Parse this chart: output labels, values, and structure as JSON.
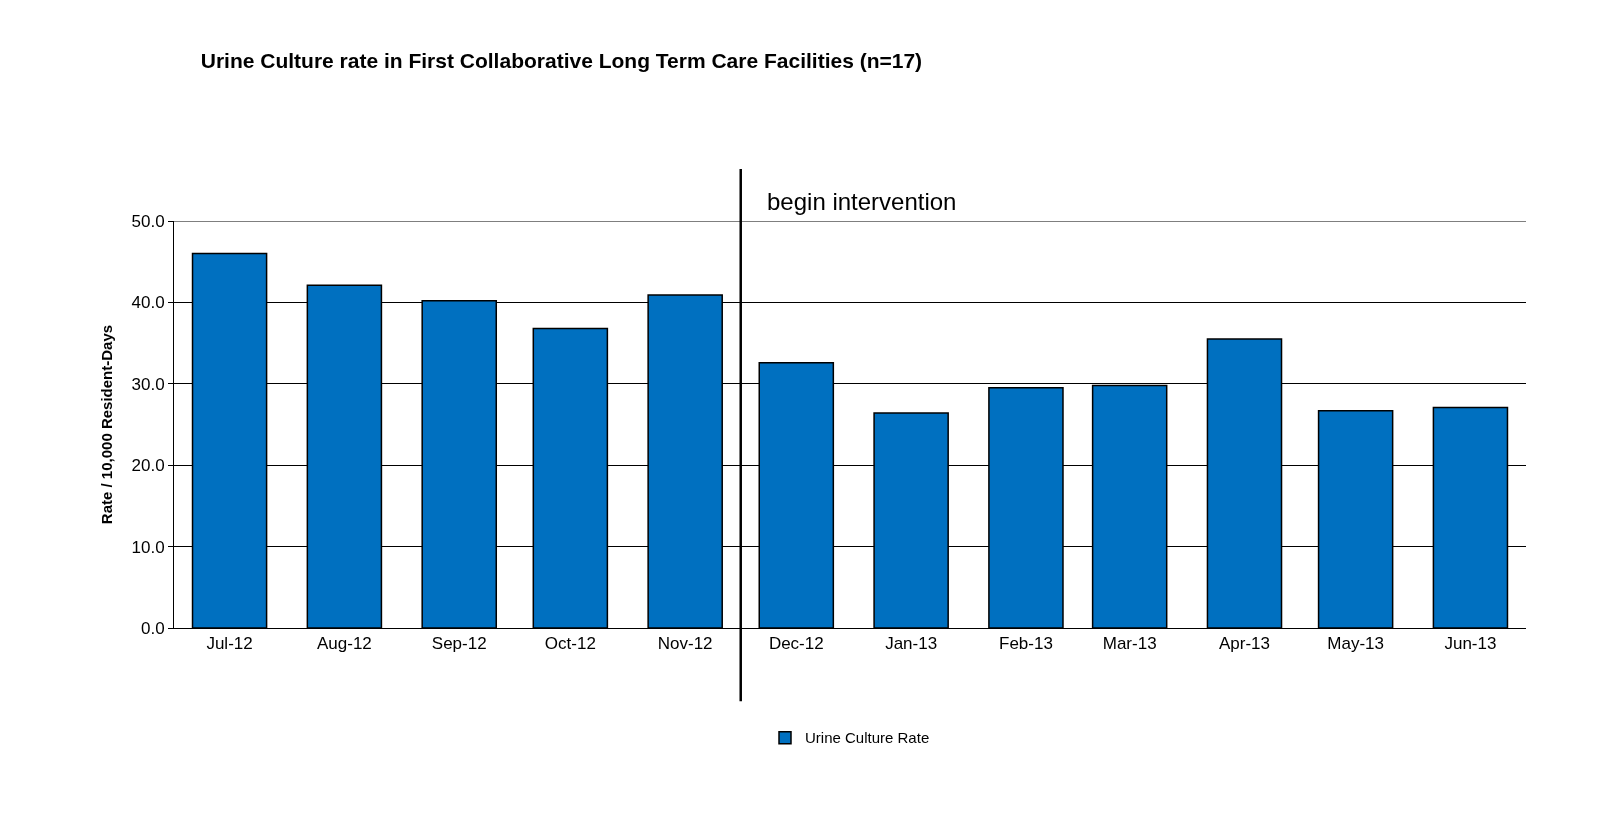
{
  "chart_data": {
    "type": "bar",
    "title": "Urine Culture rate in First Collaborative Long Term Care Facilities (n=17)",
    "ylabel": "Rate / 10,000 Resident-Days",
    "x": [
      "2012-07",
      "2012-08",
      "2012-09",
      "2012-10",
      "2012-11",
      "2012-12",
      "2013-01",
      "2013-02",
      "2013-03",
      "2013-04",
      "2013-05",
      "2013-06"
    ],
    "series": [
      {
        "name": "Urine Culture Rate",
        "color": "#0070c0",
        "values": [
          46.0,
          42.1,
          40.2,
          36.8,
          40.9,
          32.6,
          26.4,
          29.5,
          29.8,
          35.5,
          26.7,
          27.1
        ]
      }
    ],
    "xlim": [
      "2012-06-16",
      "2013-06-16"
    ],
    "xticks": [
      {
        "value": "2012-07",
        "label": "Jul-12"
      },
      {
        "value": "2012-08",
        "label": "Aug-12"
      },
      {
        "value": "2012-09",
        "label": "Sep-12"
      },
      {
        "value": "2012-10",
        "label": "Oct-12"
      },
      {
        "value": "2012-11",
        "label": "Nov-12"
      },
      {
        "value": "2012-12",
        "label": "Dec-12"
      },
      {
        "value": "2013-01",
        "label": "Jan-13"
      },
      {
        "value": "2013-02",
        "label": "Feb-13"
      },
      {
        "value": "2013-03",
        "label": "Mar-13"
      },
      {
        "value": "2013-04",
        "label": "Apr-13"
      },
      {
        "value": "2013-05",
        "label": "May-13"
      },
      {
        "value": "2013-06",
        "label": "Jun-13"
      }
    ],
    "ylim": [
      0,
      50
    ],
    "yticks": [
      {
        "value": 0,
        "label": "0.0"
      },
      {
        "value": 10,
        "label": "10.0"
      },
      {
        "value": 20,
        "label": "20.0"
      },
      {
        "value": 30,
        "label": "30.0"
      },
      {
        "value": 40,
        "label": "40.0"
      },
      {
        "value": 50,
        "label": "50.0"
      }
    ],
    "ref_lines": [
      {
        "axis": "x",
        "value": "2012-11-16",
        "label": "begin intervention",
        "color": "#000000"
      }
    ],
    "grid": "y",
    "legend": "bottom"
  }
}
